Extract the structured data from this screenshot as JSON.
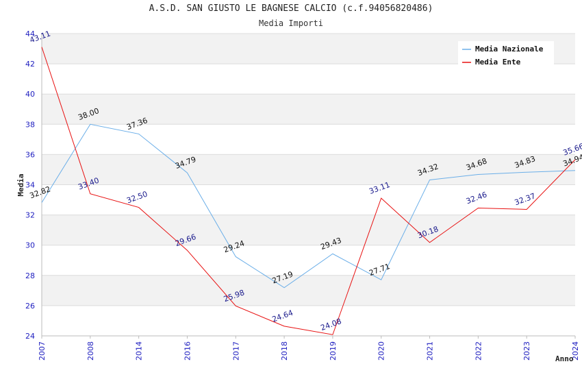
{
  "header": {
    "title": "A.S.D. SAN GIUSTO LE BAGNESE CALCIO (c.f.94056820486)",
    "subtitle": "Media Importi"
  },
  "chart_data": {
    "type": "line",
    "title": "A.S.D. SAN GIUSTO LE BAGNESE CALCIO (c.f.94056820486)",
    "subtitle": "Media Importi",
    "xlabel": "Anno",
    "ylabel": "Media",
    "categories": [
      "2007",
      "2008",
      "2014",
      "2016",
      "2017",
      "2018",
      "2019",
      "2020",
      "2021",
      "2022",
      "2023",
      "2024"
    ],
    "ylim": [
      24,
      44
    ],
    "yticks": [
      24,
      26,
      28,
      30,
      32,
      34,
      36,
      38,
      40,
      42,
      44
    ],
    "grid": true,
    "legend_position": "top-right",
    "series": [
      {
        "name": "Media Nazionale",
        "color": "#6aaee8",
        "label_color": "#111111",
        "values": [
          32.82,
          38.0,
          37.36,
          34.79,
          29.24,
          27.19,
          29.43,
          27.71,
          34.32,
          34.68,
          34.83,
          34.94
        ],
        "labels": [
          "32.82",
          "38.00",
          "37.36",
          "34.79",
          "29.24",
          "27.19",
          "29.43",
          "27.71",
          "34.32",
          "34.68",
          "34.83",
          "34.94"
        ]
      },
      {
        "name": "Media Ente",
        "color": "#e81010",
        "label_color": "#1a1a8c",
        "values": [
          43.11,
          33.4,
          32.5,
          29.66,
          25.98,
          24.64,
          24.08,
          33.11,
          30.18,
          32.46,
          32.37,
          35.66
        ],
        "labels": [
          "43.11",
          "33.40",
          "32.50",
          "29.66",
          "25.98",
          "24.64",
          "24.08",
          "33.11",
          "30.18",
          "32.46",
          "32.37",
          "35.66"
        ]
      }
    ]
  }
}
